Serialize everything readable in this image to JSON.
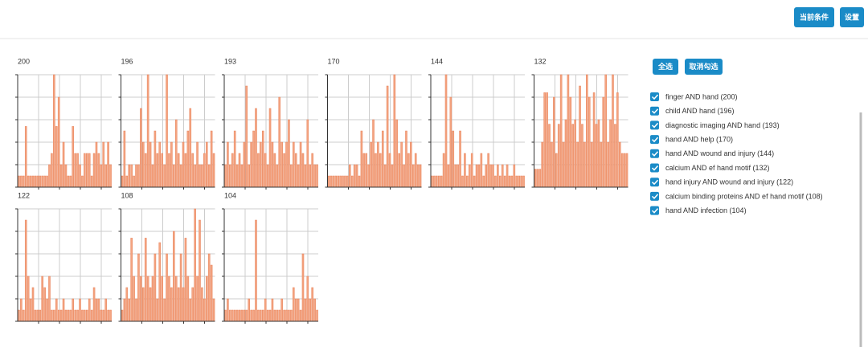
{
  "header": {
    "buttons": [
      "当前条件",
      "设置"
    ]
  },
  "chart_data": [
    {
      "type": "bar",
      "title": "200",
      "color": "#f4a582",
      "ylim": [
        0,
        5
      ],
      "yticks": [
        0,
        1,
        2,
        3,
        4,
        5
      ],
      "values": [
        0.5,
        0.5,
        0.5,
        2.7,
        0.5,
        0.5,
        0.5,
        0.5,
        0.5,
        0.5,
        0.5,
        0.5,
        0.5,
        1,
        1.5,
        5,
        2.7,
        4,
        1,
        2,
        1,
        0.5,
        0.5,
        2.7,
        1.5,
        1.5,
        1,
        0.5,
        1.5,
        1.5,
        1.5,
        0.5,
        1.5,
        2,
        1.5,
        1,
        2,
        1,
        2,
        1
      ]
    },
    {
      "type": "bar",
      "title": "196",
      "color": "#f4a582",
      "ylim": [
        0,
        5
      ],
      "yticks": [
        0,
        1,
        2,
        3,
        4,
        5
      ],
      "values": [
        0.5,
        2.5,
        0.5,
        1,
        1,
        0.5,
        1,
        1,
        3.5,
        2,
        1.5,
        5,
        2,
        1,
        2.5,
        1.5,
        2,
        1.5,
        1,
        5,
        1.5,
        2,
        1,
        3,
        1.5,
        1,
        2,
        1.5,
        2.5,
        3.5,
        1.5,
        1,
        2,
        1,
        1,
        1.5,
        2,
        1,
        2.5,
        1.5
      ]
    },
    {
      "type": "bar",
      "title": "193",
      "color": "#f4a582",
      "ylim": [
        0,
        5
      ],
      "yticks": [
        0,
        1,
        2,
        3,
        4,
        5
      ],
      "values": [
        1,
        2,
        1,
        1.5,
        2.5,
        1,
        1.5,
        1,
        2,
        4.5,
        1,
        2,
        2.5,
        3.5,
        1.5,
        2,
        2.5,
        1.5,
        1,
        3.5,
        2,
        1.5,
        1,
        4,
        2,
        1.5,
        2,
        3,
        1,
        2,
        1.5,
        1,
        2,
        1.5,
        1,
        3,
        1,
        1.5,
        1,
        1
      ]
    },
    {
      "type": "bar",
      "title": "170",
      "color": "#f4a582",
      "ylim": [
        0,
        5
      ],
      "yticks": [
        0,
        1,
        2,
        3,
        4,
        5
      ],
      "values": [
        0.5,
        0.5,
        0.5,
        0.5,
        0.5,
        0.5,
        0.5,
        0.5,
        0.5,
        1,
        0.5,
        1,
        1,
        0.5,
        2.5,
        1.5,
        1.5,
        1,
        2,
        3,
        1.5,
        2,
        1.5,
        2.5,
        1,
        4.5,
        1.5,
        1,
        5,
        3,
        1.5,
        2,
        1,
        2.5,
        1.5,
        2,
        1,
        1.5,
        1,
        1
      ]
    },
    {
      "type": "bar",
      "title": "144",
      "color": "#f4a582",
      "ylim": [
        0,
        5
      ],
      "yticks": [
        0,
        1,
        2,
        3,
        4,
        5
      ],
      "values": [
        0.5,
        0.5,
        0.5,
        0.5,
        0.5,
        1.5,
        5,
        1,
        4,
        2.5,
        1,
        1,
        2.5,
        0.5,
        1.5,
        0.5,
        1,
        1.5,
        0.5,
        1,
        1,
        1.5,
        0.5,
        1,
        1.5,
        1,
        1,
        0.5,
        1,
        0.5,
        1,
        0.5,
        1,
        0.5,
        0.5,
        1,
        0.5,
        0.5,
        0.5,
        0.5
      ]
    },
    {
      "type": "bar",
      "title": "132",
      "color": "#f4a582",
      "ylim": [
        0,
        5
      ],
      "yticks": [
        0,
        1,
        2,
        3,
        4,
        5
      ],
      "values": [
        0.8,
        0.8,
        0.8,
        2,
        4.2,
        4.2,
        2.8,
        2,
        4,
        1.5,
        2.8,
        5,
        2,
        3,
        5,
        4,
        2.8,
        3,
        2,
        4.5,
        2.8,
        2,
        5,
        4,
        2,
        4.2,
        2.8,
        3,
        2,
        4,
        5,
        2,
        3,
        5,
        2.8,
        4.2,
        2,
        1.5,
        1.5,
        1.5
      ]
    },
    {
      "type": "bar",
      "title": "122",
      "color": "#f4a582",
      "ylim": [
        0,
        5
      ],
      "yticks": [
        0,
        1,
        2,
        3,
        4,
        5
      ],
      "values": [
        0.5,
        1,
        0.5,
        4.5,
        2,
        1,
        1.5,
        0.5,
        0.5,
        0.5,
        2,
        1.5,
        1,
        2,
        0.5,
        0.5,
        1,
        0.5,
        0.5,
        1,
        0.5,
        0.5,
        0.5,
        1,
        0.5,
        0.5,
        1,
        0.5,
        0.5,
        0.5,
        1,
        0.5,
        1.5,
        1,
        1,
        0.5,
        0.5,
        1,
        0.5,
        0.5
      ]
    },
    {
      "type": "bar",
      "title": "108",
      "color": "#f4a582",
      "ylim": [
        0,
        5
      ],
      "yticks": [
        0,
        1,
        2,
        3,
        4,
        5
      ],
      "values": [
        0.5,
        1,
        1.5,
        1,
        3.7,
        2,
        1,
        3,
        2,
        1.5,
        3.7,
        2,
        1.5,
        2,
        3,
        1,
        3.5,
        2,
        1,
        3,
        2,
        1.5,
        4,
        2,
        1.5,
        3,
        1.5,
        3.7,
        2,
        1,
        1.5,
        5,
        2,
        4.5,
        1.5,
        1,
        2,
        3,
        2.5,
        1
      ]
    },
    {
      "type": "bar",
      "title": "104",
      "color": "#f4a582",
      "ylim": [
        0,
        5
      ],
      "yticks": [
        0,
        1,
        2,
        3,
        4,
        5
      ],
      "values": [
        0.5,
        1,
        0.5,
        0.5,
        0.5,
        0.5,
        0.5,
        0.5,
        0.5,
        0.5,
        1,
        0.5,
        0.5,
        4.5,
        0.5,
        0.5,
        0.5,
        1,
        0.5,
        0.5,
        1,
        0.5,
        0.5,
        0.5,
        1,
        0.5,
        0.5,
        0.5,
        0.5,
        1.5,
        1,
        1,
        0.5,
        3,
        1,
        2,
        1,
        1.5,
        1,
        0.5
      ]
    }
  ],
  "panel": {
    "buttons": [
      "全选",
      "取消勾选"
    ],
    "items": [
      "finger AND hand (200)",
      "child AND hand (196)",
      "diagnostic imaging AND hand (193)",
      "hand AND help (170)",
      "hand AND wound and injury (144)",
      "calcium AND ef hand motif (132)",
      "hand injury AND wound and injury (122)",
      "calcium binding proteins AND ef hand motif (108)",
      "hand AND infection (104)"
    ]
  }
}
